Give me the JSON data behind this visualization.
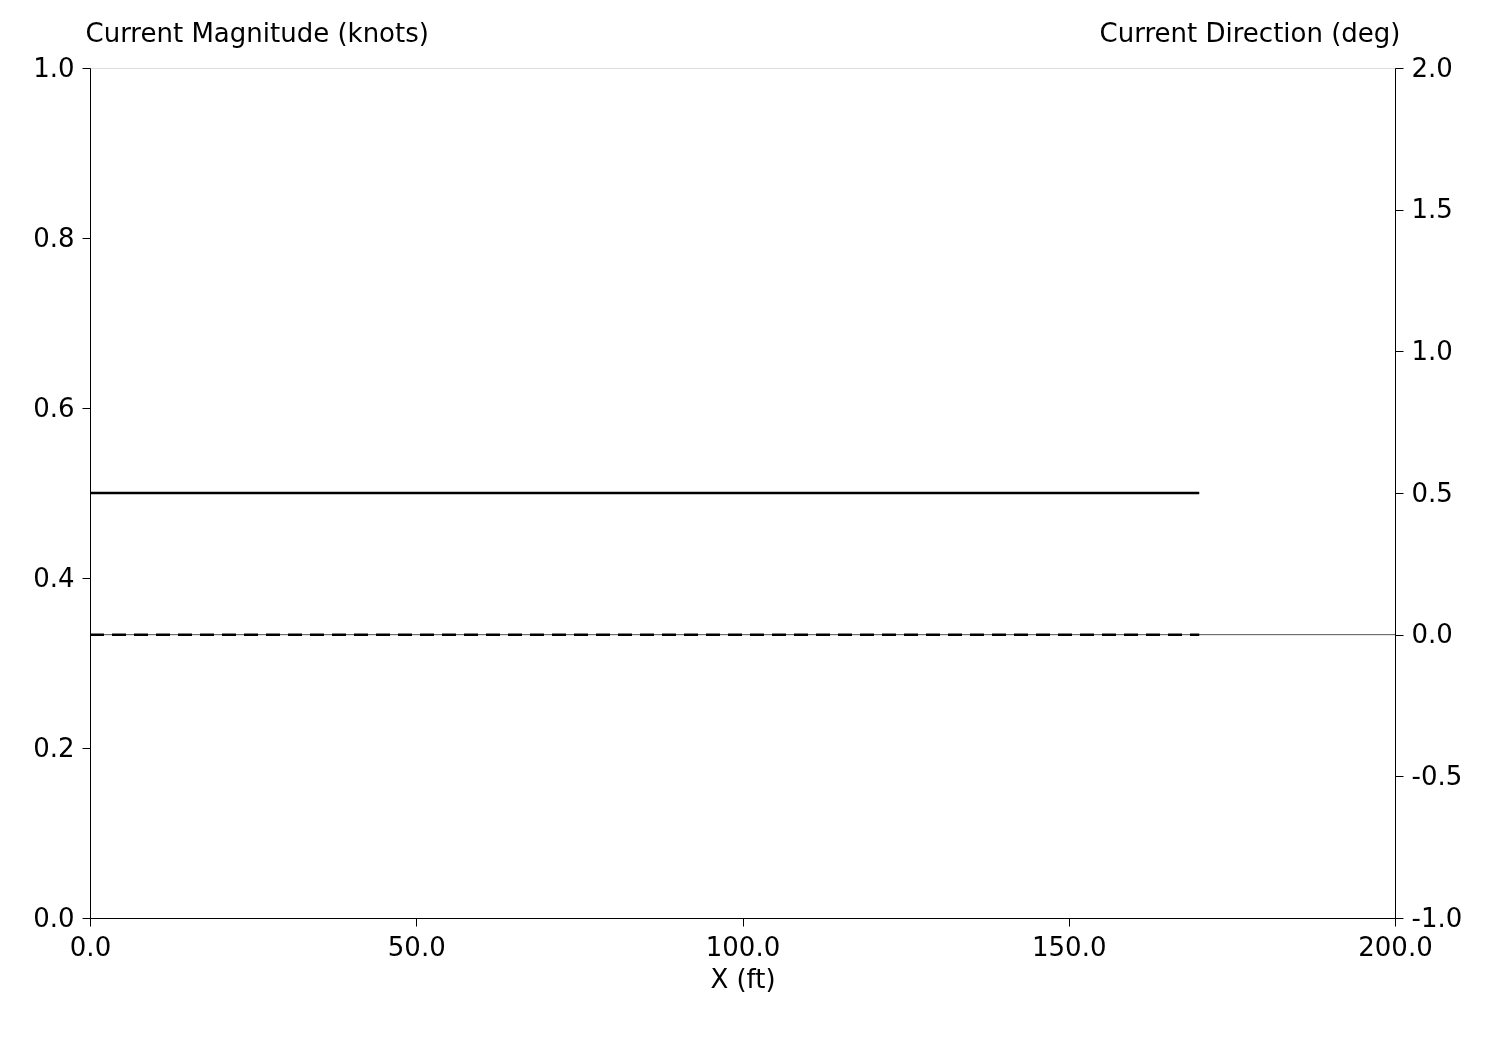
{
  "chart_data": {
    "type": "line",
    "xlabel": "X  (ft)",
    "ylabel": "Current Magnitude (knots)",
    "y2label": "Current Direction (deg)",
    "x": [
      0,
      170
    ],
    "series": [
      {
        "values": [
          0.5,
          0.5
        ],
        "color": "#000000",
        "line_style": "solid"
      },
      {
        "values": [
          0,
          0
        ],
        "color": "#000000",
        "line_style": "dashed",
        "axis": "y2"
      }
    ],
    "xlim": [
      0,
      200
    ],
    "xticks": [
      {
        "value": 0,
        "label": "0.0"
      },
      {
        "value": 50,
        "label": "50.0"
      },
      {
        "value": 100,
        "label": "100.0"
      },
      {
        "value": 150,
        "label": "150.0"
      },
      {
        "value": 200,
        "label": "200.0"
      }
    ],
    "ylim": [
      0,
      1
    ],
    "yticks": [
      {
        "value": 0,
        "label": "0.0"
      },
      {
        "value": 0.2,
        "label": "0.2"
      },
      {
        "value": 0.4,
        "label": "0.4"
      },
      {
        "value": 0.6,
        "label": "0.6"
      },
      {
        "value": 0.8,
        "label": "0.8"
      },
      {
        "value": 1,
        "label": "1.0"
      }
    ],
    "y2lim": [
      -1,
      2
    ],
    "y2ticks": [
      {
        "value": -1,
        "label": "-1.0"
      },
      {
        "value": -0.5,
        "label": "-0.5"
      },
      {
        "value": 0,
        "label": "0.0"
      },
      {
        "value": 0.5,
        "label": "0.5"
      },
      {
        "value": 1,
        "label": "1.0"
      },
      {
        "value": 1.5,
        "label": "1.5"
      },
      {
        "value": 2,
        "label": "2.0"
      }
    ],
    "ref_lines": [
      {
        "axis": "y2",
        "value": 0,
        "color": "#555555",
        "line_style": "solid"
      }
    ],
    "grid": false,
    "marker": "none"
  }
}
